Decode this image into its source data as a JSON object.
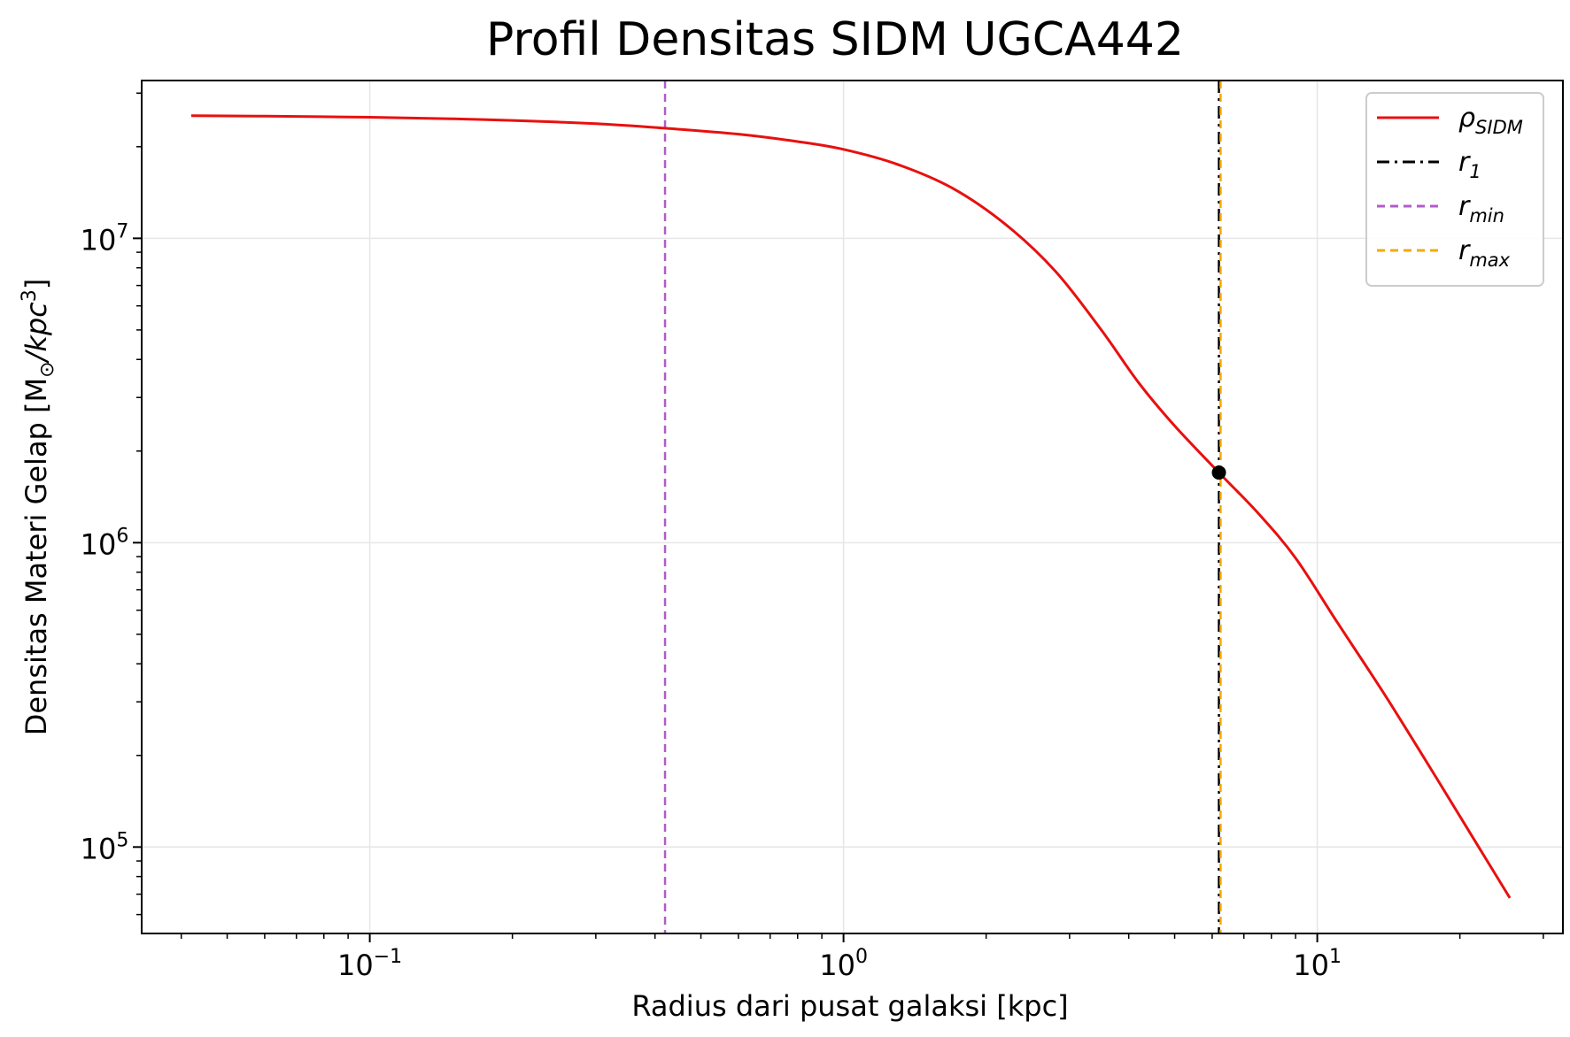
{
  "chart_data": {
    "type": "line",
    "title": "Profil Densitas SIDM UGCA442",
    "xlabel": "Radius dari pusat galaksi [kpc]",
    "ylabel": "Densitas Materi Gelap [M",
    "ylabel_sub": "⊙",
    "ylabel_rest": "/kpc",
    "ylabel_sup": "3",
    "ylabel_close": "]",
    "xscale": "log",
    "yscale": "log",
    "xlim": [
      0.033,
      33
    ],
    "ylim": [
      52000,
      33000000
    ],
    "grid": true,
    "legend_position": "top-right",
    "x_ticks": [
      {
        "value": 0.1,
        "base": "10",
        "exp": "−1"
      },
      {
        "value": 1,
        "base": "10",
        "exp": "0"
      },
      {
        "value": 10,
        "base": "10",
        "exp": "1"
      }
    ],
    "y_ticks": [
      {
        "value": 100000,
        "base": "10",
        "exp": "5"
      },
      {
        "value": 1000000,
        "base": "10",
        "exp": "6"
      },
      {
        "value": 10000000,
        "base": "10",
        "exp": "7"
      }
    ],
    "series": [
      {
        "name": "ρ",
        "name_sub": "SIDM",
        "color": "#e8100f",
        "style": "solid",
        "x": [
          0.042,
          0.06,
          0.1,
          0.15,
          0.2,
          0.3,
          0.42,
          0.6,
          0.8,
          1.0,
          1.3,
          1.7,
          2.2,
          2.8,
          3.5,
          4.2,
          5.0,
          6.2,
          7.5,
          9.0,
          11.0,
          14.0,
          18.0,
          22.0,
          25.5
        ],
        "y": [
          25300000,
          25200000,
          25000000,
          24700000,
          24400000,
          23800000,
          23000000,
          22000000,
          20800000,
          19600000,
          17500000,
          14600000,
          11100000,
          7800000,
          5000000,
          3350000,
          2420000,
          1700000,
          1250000,
          890000,
          550000,
          310000,
          165000,
          99000,
          68000
        ]
      }
    ],
    "vlines": [
      {
        "name": "r",
        "name_sub": "1",
        "x": 6.2,
        "color": "#000000",
        "style": "dashdot"
      },
      {
        "name": "r",
        "name_sub": "min",
        "x": 0.42,
        "color": "#b05cc8",
        "style": "dashed"
      },
      {
        "name": "r",
        "name_sub": "max",
        "x": 6.25,
        "color": "#f5a900",
        "style": "dashed"
      }
    ],
    "markers": [
      {
        "x": 6.2,
        "y": 1700000,
        "color": "#000000"
      }
    ]
  }
}
